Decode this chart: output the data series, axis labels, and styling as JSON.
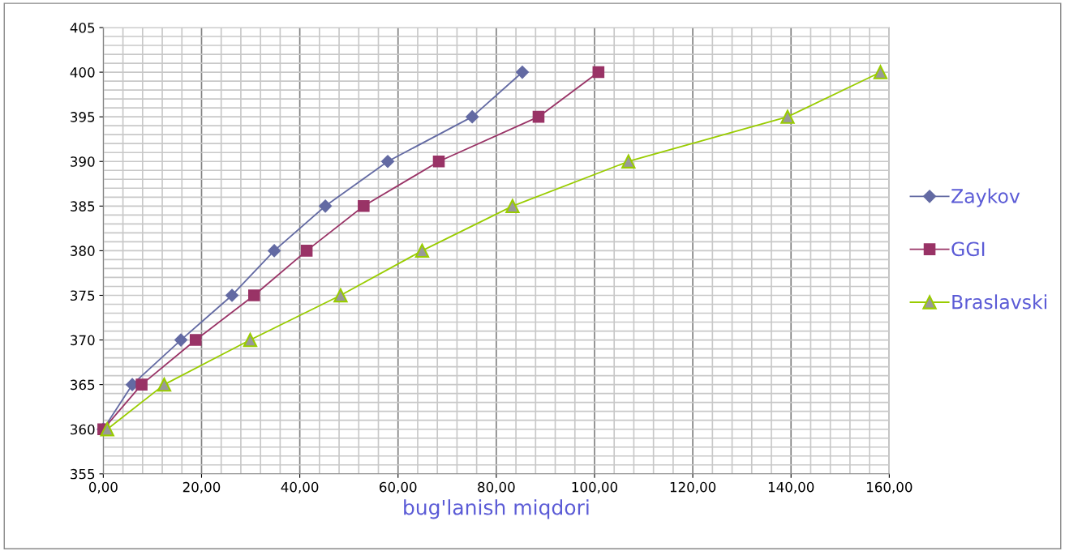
{
  "chart_data": {
    "type": "line",
    "xlabel": "bug'lanish miqdori",
    "xlim": [
      0,
      160
    ],
    "ylim": [
      355,
      405
    ],
    "xticks": [
      {
        "value": 0,
        "label": "0,00"
      },
      {
        "value": 20,
        "label": "20,00"
      },
      {
        "value": 40,
        "label": "40,00"
      },
      {
        "value": 60,
        "label": "60,00"
      },
      {
        "value": 80,
        "label": "80,00"
      },
      {
        "value": 100,
        "label": "100,00"
      },
      {
        "value": 120,
        "label": "120,00"
      },
      {
        "value": 140,
        "label": "140,00"
      },
      {
        "value": 160,
        "label": "160,00"
      }
    ],
    "yticks": [
      355,
      360,
      365,
      370,
      375,
      380,
      385,
      390,
      395,
      400,
      405
    ],
    "grid": true,
    "legend": "right",
    "line_style": "solid",
    "series": [
      {
        "name": "Zaykov",
        "color": "#636aa3",
        "marker": "diamond",
        "x": [
          0,
          5.9,
          15.8,
          26.2,
          34.8,
          45.2,
          57.9,
          75.1,
          85.3
        ],
        "values": [
          360,
          365,
          370,
          375,
          380,
          385,
          390,
          395,
          400
        ]
      },
      {
        "name": "GGI",
        "color": "#993366",
        "marker": "square",
        "x": [
          0,
          7.8,
          18.8,
          30.7,
          41.4,
          53,
          68.3,
          88.6,
          100.8
        ],
        "values": [
          360,
          365,
          370,
          375,
          380,
          385,
          390,
          395,
          400
        ]
      },
      {
        "name": "Braslavski",
        "color": "#99cc00",
        "marker": "triangle",
        "x": [
          0.8,
          12.4,
          29.9,
          48.3,
          64.9,
          83.3,
          106.9,
          139.3,
          158.2
        ],
        "values": [
          360,
          365,
          370,
          375,
          380,
          385,
          390,
          395,
          400
        ]
      }
    ]
  }
}
